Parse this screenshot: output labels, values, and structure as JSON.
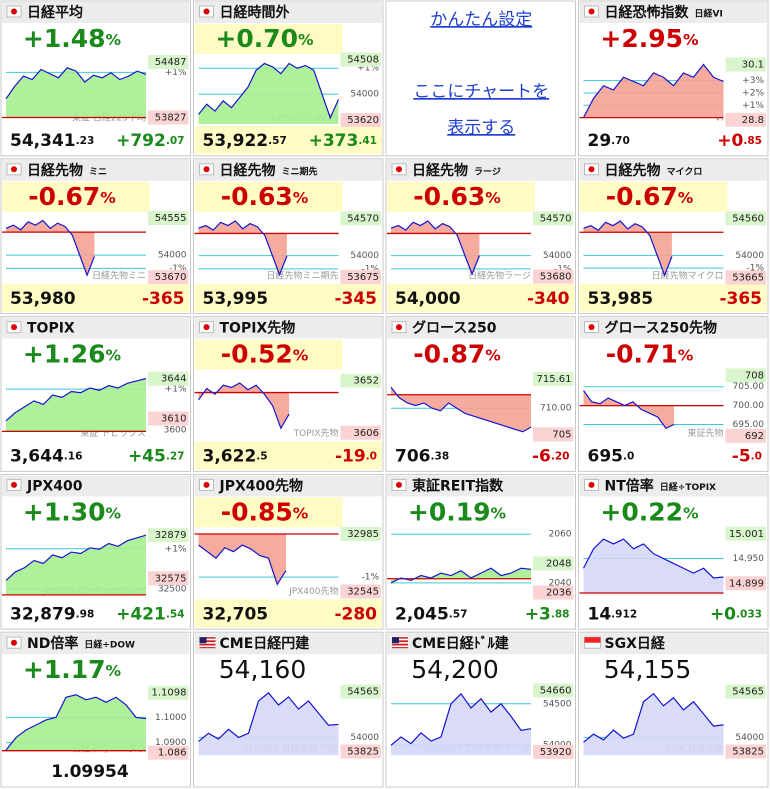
{
  "settings_panel": {
    "link": "かんたん設定",
    "placeholder": [
      "ここにチャートを",
      "表示する"
    ]
  },
  "chart_data": [
    {
      "type": "line",
      "flag": "jp",
      "title": "日経平均",
      "change_pct": "+1.48%",
      "value": "54,341.23",
      "change": "+792.07",
      "color": "#1a8a1a",
      "fill": "#a6f08f",
      "watermark": "東証 日経225平均",
      "ylim": [
        53750,
        54560
      ],
      "ref": 53827,
      "high": 54487,
      "low": 53827,
      "yticks": [
        {
          "value": 54365,
          "label": "+1%"
        }
      ],
      "values": [
        54050,
        54200,
        54320,
        54280,
        54400,
        54350,
        54300,
        54420,
        54380,
        54250,
        54330,
        54300,
        54360,
        54280,
        54320,
        54380,
        54341
      ]
    },
    {
      "type": "line",
      "flag": "jp",
      "title": "日経時間外",
      "change_pct": "+0.70%",
      "value": "53,922.57",
      "change": "+373.41",
      "color": "#1a8a1a",
      "fill": "#a6f08f",
      "highlight": true,
      "watermark": "DERIVED N225",
      "ylim": [
        53560,
        54560
      ],
      "high": 54508,
      "low": 53620,
      "yticks": [
        {
          "value": 54380,
          "label": "+1%"
        },
        54000
      ],
      "values": [
        53700,
        53850,
        53750,
        53900,
        53800,
        53950,
        54100,
        54350,
        54450,
        54400,
        54300,
        54450,
        54380,
        54420,
        54350,
        54000,
        53650,
        53922
      ]
    },
    {
      "type": "line",
      "flag": "jp",
      "title": "日経恐怖指数",
      "subtitle": "日経VI",
      "change_pct": "+2.95%",
      "value": "29.70",
      "change": "+0.85",
      "color": "#cc0000",
      "fill": "#f4a294",
      "watermark": "VI",
      "ylim": [
        28.7,
        30.3
      ],
      "ref": 28.85,
      "high": 30.1,
      "low": 28.8,
      "yticks": [
        {
          "value": 29.72,
          "label": "+3%"
        },
        {
          "value": 29.43,
          "label": "+2%"
        },
        {
          "value": 29.14,
          "label": "+1%"
        }
      ],
      "values": [
        28.85,
        29.3,
        29.6,
        29.5,
        29.8,
        29.7,
        29.6,
        29.9,
        29.8,
        29.6,
        29.9,
        29.8,
        30.1,
        29.8,
        29.7
      ]
    },
    {
      "type": "line",
      "flag": "jp",
      "title": "日経先物",
      "subtitle": "ミニ",
      "change_pct": "-0.67%",
      "value": "53,980",
      "change": "-365",
      "color": "#cc0000",
      "fill": "#f4a294",
      "highlight": true,
      "watermark": "日経先物ミニ",
      "ylim": [
        53600,
        54620
      ],
      "ref": 54345,
      "high": 54555,
      "low": 53670,
      "yticks": [
        54000,
        {
          "value": 53802,
          "label": "-1%"
        }
      ],
      "values": [
        54400,
        54450,
        54380,
        54500,
        54450,
        54520,
        54400,
        54480,
        54430,
        54300,
        54000,
        53700,
        53980,
        null,
        null,
        null,
        null,
        null,
        null,
        null
      ]
    },
    {
      "type": "line",
      "flag": "jp",
      "title": "日経先物",
      "subtitle": "ミニ期先",
      "change_pct": "-0.63%",
      "value": "53,995",
      "change": "-345",
      "color": "#cc0000",
      "fill": "#f4a294",
      "highlight": true,
      "watermark": "日経先物ミニ期先",
      "ylim": [
        53600,
        54640
      ],
      "ref": 54340,
      "high": 54570,
      "low": 53675,
      "yticks": [
        54000,
        {
          "value": 53797,
          "label": "-1%"
        }
      ],
      "values": [
        54420,
        54460,
        54390,
        54510,
        54460,
        54530,
        54410,
        54490,
        54440,
        54310,
        54010,
        53710,
        53995,
        null,
        null,
        null,
        null,
        null,
        null,
        null
      ]
    },
    {
      "type": "line",
      "flag": "jp",
      "title": "日経先物",
      "subtitle": "ラージ",
      "change_pct": "-0.63%",
      "value": "54,000",
      "change": "-340",
      "color": "#cc0000",
      "fill": "#f4a294",
      "highlight": true,
      "watermark": "日経先物ラージ",
      "ylim": [
        53600,
        54640
      ],
      "ref": 54340,
      "high": 54570,
      "low": 53680,
      "yticks": [
        54000,
        {
          "value": 53797,
          "label": "-1%"
        }
      ],
      "values": [
        54420,
        54460,
        54390,
        54510,
        54460,
        54530,
        54410,
        54490,
        54440,
        54310,
        54010,
        53720,
        54000,
        null,
        null,
        null,
        null,
        null,
        null,
        null
      ]
    },
    {
      "type": "line",
      "flag": "jp",
      "title": "日経先物",
      "subtitle": "マイクロ",
      "change_pct": "-0.67%",
      "value": "53,985",
      "change": "-365",
      "color": "#cc0000",
      "fill": "#f4a294",
      "highlight": true,
      "watermark": "日経先物マイクロ",
      "ylim": [
        53600,
        54630
      ],
      "ref": 54350,
      "high": 54560,
      "low": 53665,
      "yticks": [
        54000,
        {
          "value": 53807,
          "label": "-1%"
        }
      ],
      "values": [
        54410,
        54450,
        54380,
        54500,
        54450,
        54520,
        54400,
        54480,
        54430,
        54300,
        54000,
        53700,
        53985,
        null,
        null,
        null,
        null,
        null,
        null,
        null
      ]
    },
    {
      "type": "line",
      "flag": "jp",
      "title": "TOPIX",
      "change_pct": "+1.26%",
      "value": "3,644.16",
      "change": "+45.27",
      "color": "#1a8a1a",
      "fill": "#a6f08f",
      "watermark": "東証 トピックス",
      "ylim": [
        3592,
        3650
      ],
      "ref": 3599,
      "high": 3644,
      "low": 3610,
      "yticks": [
        {
          "value": 3635,
          "label": "+1%"
        },
        3600
      ],
      "values": [
        3608,
        3615,
        3620,
        3625,
        3622,
        3630,
        3628,
        3633,
        3632,
        3636,
        3634,
        3638,
        3636,
        3640,
        3642,
        3644
      ]
    },
    {
      "type": "line",
      "flag": "jp",
      "title": "TOPIX先物",
      "change_pct": "-0.52%",
      "value": "3,622.5",
      "change": "-19.0",
      "color": "#cc0000",
      "fill": "#f4a294",
      "highlight": true,
      "watermark": "TOPIX先物",
      "ylim": [
        3600,
        3660
      ],
      "ref": 3641.5,
      "high": 3652,
      "low": 3606,
      "yticks": [],
      "values": [
        3635,
        3645,
        3640,
        3648,
        3646,
        3650,
        3644,
        3648,
        3640,
        3630,
        3610,
        3622.5,
        null,
        null,
        null,
        null,
        null,
        null
      ]
    },
    {
      "type": "line",
      "flag": "jp",
      "title": "グロース250",
      "change_pct": "-0.87%",
      "value": "706.38",
      "change": "-6.20",
      "color": "#cc0000",
      "fill": "#f4a294",
      "ylim": [
        704,
        717
      ],
      "ref": 712.58,
      "high": 715.61,
      "low": 705.0,
      "yticks": [
        {
          "value": 710,
          "label": "710.00"
        }
      ],
      "values": [
        714,
        712,
        711,
        710.5,
        711,
        710,
        709.5,
        711,
        710,
        709,
        708.5,
        708,
        707.5,
        707,
        706.5,
        706,
        705.5,
        706.38
      ]
    },
    {
      "type": "line",
      "flag": "jp",
      "title": "グロース250先物",
      "change_pct": "-0.71%",
      "value": "695.0",
      "change": "-5.0",
      "color": "#cc0000",
      "fill": "#f4a294",
      "watermark": "東証先物",
      "ylim": [
        691,
        709
      ],
      "ref": 700,
      "high": 708.0,
      "low": 692.0,
      "yticks": [
        {
          "value": 705,
          "label": "705.00"
        },
        {
          "value": 700,
          "label": "700.00"
        },
        {
          "value": 695,
          "label": "695.00"
        }
      ],
      "values": [
        704,
        701,
        700.5,
        702,
        701,
        700,
        701,
        699,
        698,
        697,
        694,
        695,
        null,
        null,
        null,
        null,
        null,
        null
      ]
    },
    {
      "type": "line",
      "flag": "jp",
      "title": "JPX400",
      "change_pct": "+1.30%",
      "value": "32,879.98",
      "change": "+421.54",
      "color": "#1a8a1a",
      "fill": "#a6f08f",
      "watermark": "JPX日経インデックス400",
      "ylim": [
        32440,
        32920
      ],
      "ref": 32458,
      "high": 32879,
      "low": 32575,
      "yticks": [
        {
          "value": 32783,
          "label": "+1%"
        },
        32500
      ],
      "values": [
        32560,
        32620,
        32650,
        32700,
        32680,
        32740,
        32720,
        32760,
        32750,
        32790,
        32780,
        32820,
        32800,
        32840,
        32860,
        32879
      ]
    },
    {
      "type": "line",
      "flag": "jp",
      "title": "JPX400先物",
      "change_pct": "-0.85%",
      "value": "32,705",
      "change": "-280",
      "color": "#cc0000",
      "fill": "#f4a294",
      "highlight": true,
      "watermark": "JPX400先物",
      "ylim": [
        32500,
        33020
      ],
      "ref": 32985,
      "high": 32985,
      "low": 32545,
      "yticks": [
        {
          "value": 32655,
          "label": "-1%"
        }
      ],
      "values": [
        32900,
        32850,
        32800,
        32880,
        32850,
        32900,
        32870,
        32820,
        32800,
        32600,
        32705,
        null,
        null,
        null,
        null,
        null,
        null
      ]
    },
    {
      "type": "line",
      "flag": "jp",
      "title": "東証REIT指数",
      "change_pct": "+0.19%",
      "value": "2,045.57",
      "change": "+3.88",
      "color": "#1a8a1a",
      "fill": "#a6f08f",
      "ylim": [
        2034,
        2062
      ],
      "ref": 2041.69,
      "high": 2048,
      "low": 2036,
      "yticks": [
        2060,
        2040
      ],
      "values": [
        2040,
        2042,
        2041,
        2043,
        2042,
        2044,
        2043,
        2045,
        2042,
        2044,
        2046,
        2043,
        2044,
        2046,
        2045.57
      ]
    },
    {
      "type": "line",
      "flag": "jp",
      "title": "NT倍率",
      "subtitle": "日経÷TOPIX",
      "change_pct": "+0.22%",
      "value": "14.912",
      "change": "+0.033",
      "color": "#1a8a1a",
      "fill": "#d6d6f8",
      "ylim": [
        14.87,
        15.01
      ],
      "ref": 14.879,
      "high": 15.001,
      "low": 14.899,
      "yticks": [
        {
          "value": 14.95,
          "label": "14.950"
        }
      ],
      "values": [
        14.93,
        14.97,
        14.99,
        14.98,
        14.99,
        14.97,
        14.98,
        14.96,
        14.95,
        14.94,
        14.93,
        14.92,
        14.93,
        14.91,
        14.912
      ]
    },
    {
      "type": "line",
      "flag": "jp",
      "title": "ND倍率",
      "subtitle": "日経÷DOW",
      "change_pct": "+1.17%",
      "value": "1.09954",
      "color": "#1a8a1a",
      "fill": "#a6f08f",
      "watermark": "日経平均÷NYダウ",
      "ylim": [
        1.085,
        1.112
      ],
      "ref": 1.0868,
      "high": 1.1098,
      "low": 1.086,
      "yticks": [
        {
          "value": 1.1,
          "label": "1.1000"
        },
        {
          "value": 1.09,
          "label": "1.0900"
        }
      ],
      "values": [
        1.087,
        1.092,
        1.095,
        1.097,
        1.099,
        1.1,
        1.108,
        1.109,
        1.107,
        1.108,
        1.106,
        1.108,
        1.105,
        1.1,
        1.09954
      ]
    },
    {
      "type": "line",
      "flag": "us",
      "title": "CME日経円建",
      "value": "54,160",
      "value_position": "top",
      "fill": "#d6d6f8",
      "watermark": "GLOBEX 日経先物 円建",
      "ylim": [
        53780,
        54620
      ],
      "high": 54565,
      "low": 53825,
      "yticks": [
        54000
      ],
      "values": [
        53950,
        54050,
        53980,
        54100,
        54000,
        54050,
        54450,
        54550,
        54400,
        54500,
        54350,
        54450,
        54300,
        54150,
        54160
      ]
    },
    {
      "type": "line",
      "flag": "us",
      "title": "CME日経ﾄﾞﾙ建",
      "value": "54,200",
      "value_position": "top",
      "fill": "#d6d6f8",
      "watermark": "GLOBEX 日経先物 ドル建",
      "ylim": [
        53880,
        54700
      ],
      "high": 54660,
      "low": 53920,
      "yticks": [
        54500,
        54000
      ],
      "values": [
        54000,
        54100,
        54020,
        54150,
        54050,
        54100,
        54500,
        54620,
        54450,
        54560,
        54400,
        54500,
        54350,
        54180,
        54200
      ]
    },
    {
      "type": "line",
      "flag": "sg",
      "title": "SGX日経",
      "value": "54,155",
      "value_position": "top",
      "fill": "#d6d6f8",
      "watermark": "SGX 日経先物",
      "ylim": [
        53780,
        54620
      ],
      "high": 54565,
      "low": 53825,
      "yticks": [
        54000
      ],
      "values": [
        53940,
        54040,
        53970,
        54090,
        53990,
        54040,
        54440,
        54540,
        54390,
        54490,
        54340,
        54440,
        54290,
        54140,
        54155
      ]
    }
  ]
}
